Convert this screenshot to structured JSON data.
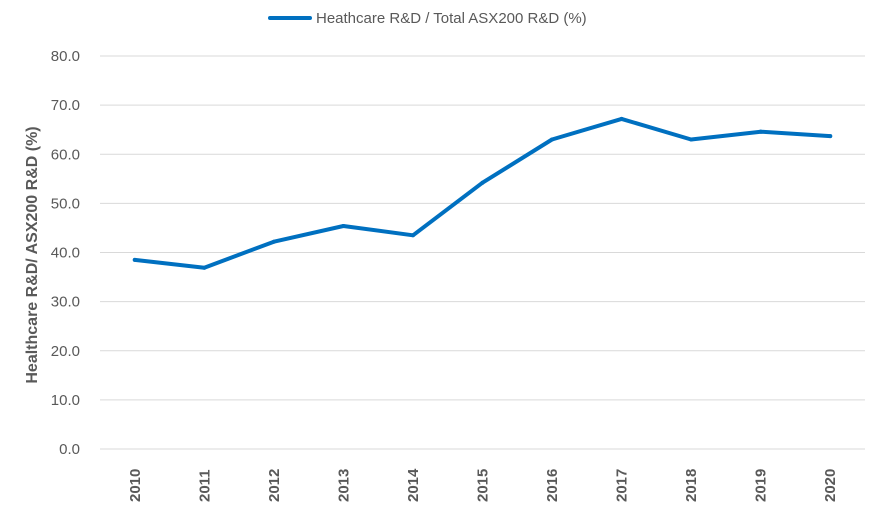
{
  "chart_data": {
    "type": "line",
    "title": "",
    "xlabel": "",
    "ylabel": "Healthcare R&D/ ASX200 R&D (%)",
    "ylim": [
      0,
      80
    ],
    "yticks": [
      "0.0",
      "10.0",
      "20.0",
      "30.0",
      "40.0",
      "50.0",
      "60.0",
      "70.0",
      "80.0"
    ],
    "categories": [
      "2010",
      "2011",
      "2012",
      "2013",
      "2014",
      "2015",
      "2016",
      "2017",
      "2018",
      "2019",
      "2020"
    ],
    "series": [
      {
        "name": "Heathcare R&D / Total ASX200 R&D (%)",
        "color": "#0070C0",
        "values": [
          38.5,
          36.9,
          42.2,
          45.4,
          43.5,
          54.2,
          63.0,
          67.2,
          63.0,
          64.6,
          63.7
        ]
      }
    ],
    "grid": true,
    "legend": "top-center"
  }
}
